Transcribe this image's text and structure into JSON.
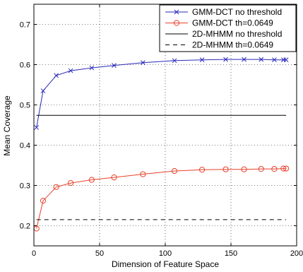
{
  "chart_data": {
    "type": "line",
    "xlabel": "Dimension of Feature Space",
    "ylabel": "Mean Coverage",
    "xlim": [
      0,
      200
    ],
    "ylim": [
      0.15,
      0.75
    ],
    "xticks": [
      0,
      50,
      100,
      150,
      200
    ],
    "yticks": [
      0.2,
      0.3,
      0.4,
      0.5,
      0.6,
      0.7
    ],
    "grid": true,
    "grid_style": "dotted",
    "legend_position": "top-right",
    "series": [
      {
        "name": "GMM-DCT no threshold",
        "color": "#2a2ab8",
        "marker": "x",
        "line_style": "solid",
        "x": [
          2,
          7,
          17,
          28,
          44,
          61,
          83,
          107,
          128,
          146,
          160,
          173,
          183,
          190,
          192
        ],
        "y": [
          0.444,
          0.535,
          0.573,
          0.585,
          0.592,
          0.598,
          0.605,
          0.61,
          0.612,
          0.613,
          0.613,
          0.613,
          0.612,
          0.612,
          0.612
        ]
      },
      {
        "name": "GMM-DCT th=0.0649",
        "color": "#e8412b",
        "marker": "o",
        "line_style": "solid",
        "x": [
          2,
          7,
          17,
          28,
          44,
          61,
          83,
          107,
          128,
          146,
          160,
          173,
          183,
          190,
          192
        ],
        "y": [
          0.193,
          0.262,
          0.296,
          0.306,
          0.314,
          0.32,
          0.328,
          0.336,
          0.339,
          0.34,
          0.34,
          0.341,
          0.341,
          0.342,
          0.342
        ]
      },
      {
        "name": "2D-MHMM no threshold",
        "color": "#000000",
        "marker": "none",
        "line_style": "solid",
        "x": [
          2,
          192
        ],
        "y": [
          0.474,
          0.474
        ]
      },
      {
        "name": "2D-MHMM th=0.0649",
        "color": "#000000",
        "marker": "none",
        "line_style": "dashed",
        "x": [
          2,
          192
        ],
        "y": [
          0.215,
          0.215
        ]
      }
    ]
  }
}
